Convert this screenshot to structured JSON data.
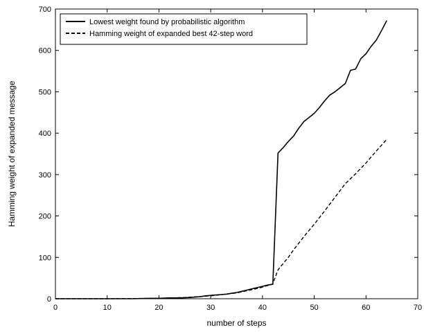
{
  "chart_data": {
    "type": "line",
    "title": "",
    "xlabel": "number of steps",
    "ylabel": "Hamming weight of expanded message",
    "xlim": [
      0,
      70
    ],
    "ylim": [
      0,
      700
    ],
    "xticks": [
      0,
      10,
      20,
      30,
      40,
      50,
      60,
      70
    ],
    "yticks": [
      0,
      100,
      200,
      300,
      400,
      500,
      600,
      700
    ],
    "grid": false,
    "legend_position": "top-left",
    "series": [
      {
        "name": "Lowest weight found by probabilistic algorithm",
        "style": "solid",
        "color": "#000000",
        "x": [
          0,
          5,
          10,
          15,
          18,
          20,
          22,
          24,
          26,
          28,
          29,
          30,
          31,
          32,
          33,
          34,
          35,
          36,
          37,
          38,
          39,
          40,
          41,
          42,
          43,
          44,
          45,
          46,
          47,
          48,
          49,
          50,
          51,
          52,
          53,
          54,
          55,
          56,
          57,
          58,
          59,
          60,
          61,
          62,
          63,
          64
        ],
        "y": [
          0,
          0,
          0,
          0,
          1,
          1,
          2,
          2,
          3,
          5,
          7,
          8,
          9,
          10,
          11,
          13,
          15,
          18,
          21,
          24,
          27,
          30,
          33,
          35,
          352,
          365,
          380,
          393,
          412,
          428,
          438,
          448,
          462,
          478,
          492,
          500,
          510,
          520,
          552,
          555,
          580,
          592,
          610,
          625,
          648,
          672
        ]
      },
      {
        "name": "Hamming weight of expanded best 42-step word",
        "style": "dashed",
        "color": "#000000",
        "x": [
          0,
          10,
          20,
          25,
          30,
          35,
          38,
          40,
          41,
          42,
          43,
          44,
          45,
          46,
          48,
          50,
          52,
          54,
          56,
          58,
          60,
          62,
          64
        ],
        "y": [
          0,
          0,
          1,
          3,
          7,
          14,
          22,
          28,
          32,
          36,
          70,
          85,
          100,
          118,
          150,
          180,
          212,
          245,
          278,
          302,
          328,
          357,
          385
        ]
      }
    ]
  }
}
